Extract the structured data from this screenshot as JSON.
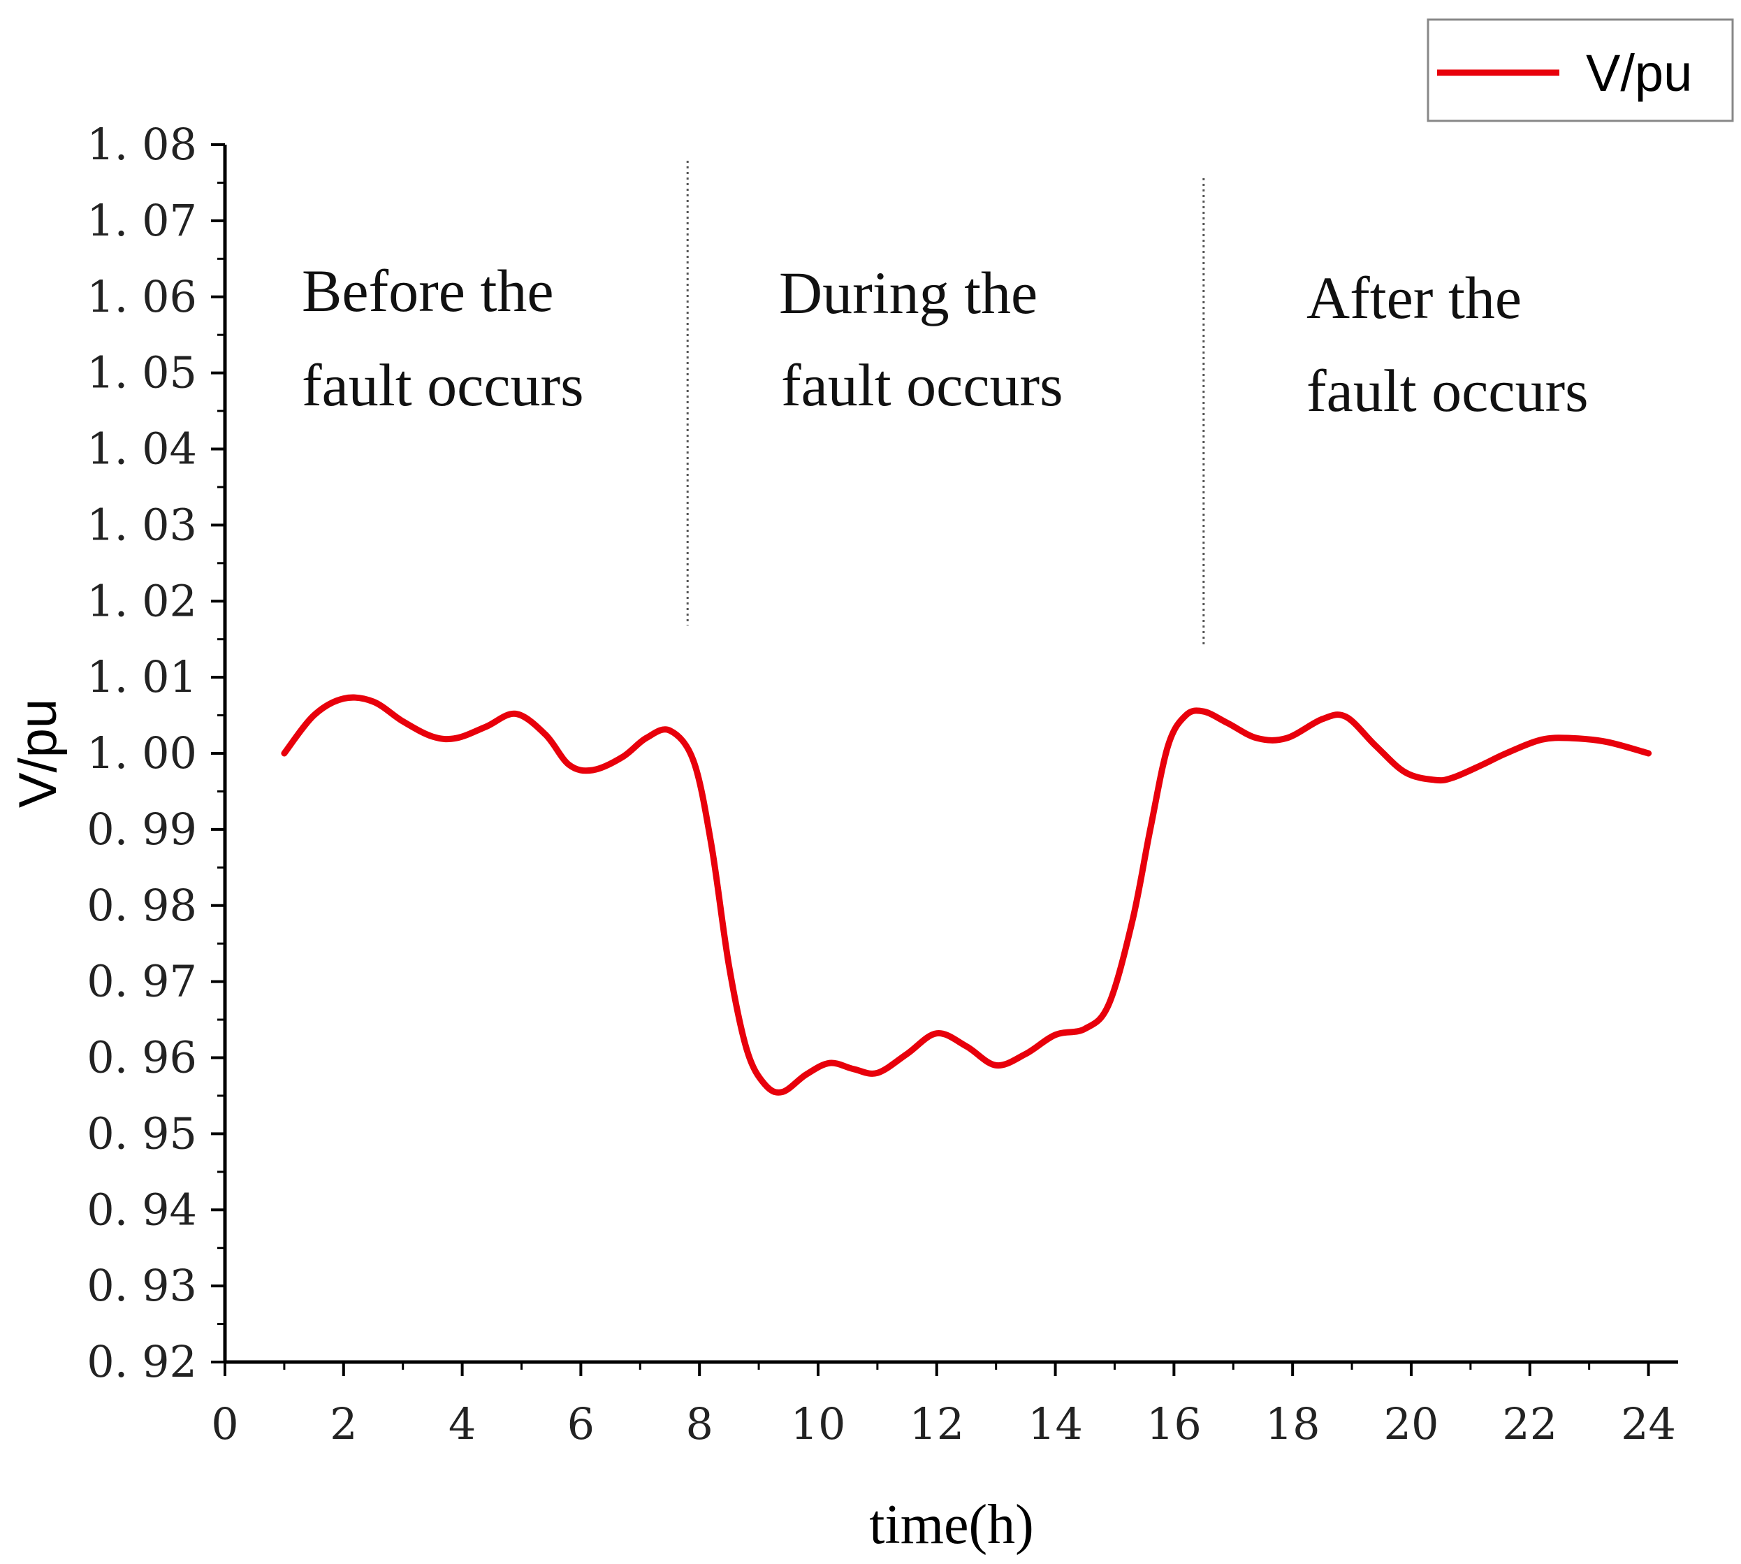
{
  "chart_data": {
    "type": "line",
    "title": "",
    "xlabel": "time(h)",
    "ylabel": "V/pu",
    "xlim": [
      0,
      24.5
    ],
    "ylim": [
      0.92,
      1.08
    ],
    "xticks": [
      0,
      2,
      4,
      6,
      8,
      10,
      12,
      14,
      16,
      18,
      20,
      22,
      24
    ],
    "xtick_labels": [
      "0",
      "2",
      "4",
      "6",
      "8",
      "10",
      "12",
      "14",
      "16",
      "18",
      "20",
      "22",
      "24"
    ],
    "yticks": [
      0.92,
      0.93,
      0.94,
      0.95,
      0.96,
      0.97,
      0.98,
      0.99,
      1.0,
      1.01,
      1.02,
      1.03,
      1.04,
      1.05,
      1.06,
      1.07,
      1.08
    ],
    "ytick_labels": [
      "0. 92",
      "0. 93",
      "0. 94",
      "0. 95",
      "0. 96",
      "0. 97",
      "0. 98",
      "0. 99",
      "1. 00",
      "1. 01",
      "1. 02",
      "1. 03",
      "1. 04",
      "1. 05",
      "1. 06",
      "1. 07",
      "1. 08"
    ],
    "grid": false,
    "legend": {
      "position": "top-right",
      "entries": [
        "V/pu"
      ]
    },
    "series": [
      {
        "name": "V/pu",
        "color": "#e8000b",
        "x": [
          1.0,
          1.5,
          2.0,
          2.5,
          3.0,
          3.5,
          3.9,
          4.4,
          4.9,
          5.4,
          5.8,
          6.2,
          6.7,
          7.1,
          7.5,
          7.9,
          8.2,
          8.5,
          8.8,
          9.1,
          9.4,
          9.8,
          10.2,
          10.6,
          11.0,
          11.5,
          12.0,
          12.5,
          13.0,
          13.5,
          14.0,
          14.5,
          14.9,
          15.3,
          15.6,
          15.9,
          16.2,
          16.5,
          16.9,
          17.4,
          17.9,
          18.5,
          18.9,
          19.4,
          19.9,
          20.4,
          20.7,
          21.2,
          21.6,
          22.2,
          22.7,
          23.3,
          24.0
        ],
        "y": [
          1.0,
          1.005,
          1.0072,
          1.0068,
          1.0042,
          1.0022,
          1.002,
          1.0035,
          1.0052,
          1.0025,
          0.9985,
          0.9978,
          0.9995,
          1.002,
          1.003,
          0.999,
          0.988,
          0.972,
          0.961,
          0.9565,
          0.9555,
          0.9578,
          0.9593,
          0.9585,
          0.958,
          0.9605,
          0.9632,
          0.9615,
          0.959,
          0.9605,
          0.963,
          0.9638,
          0.967,
          0.978,
          0.99,
          1.001,
          1.005,
          1.0055,
          1.004,
          1.002,
          1.002,
          1.0045,
          1.0048,
          1.001,
          0.9975,
          0.9965,
          0.9968,
          0.9985,
          1.0,
          1.0018,
          1.002,
          1.0015,
          1.0
        ]
      }
    ],
    "phase_dividers": [
      7.8,
      16.5
    ],
    "annotations": [
      {
        "line1": "Before the",
        "line2": "fault occurs"
      },
      {
        "line1": "During the",
        "line2": "fault occurs"
      },
      {
        "line1": "After the",
        "line2": "fault occurs"
      }
    ]
  }
}
